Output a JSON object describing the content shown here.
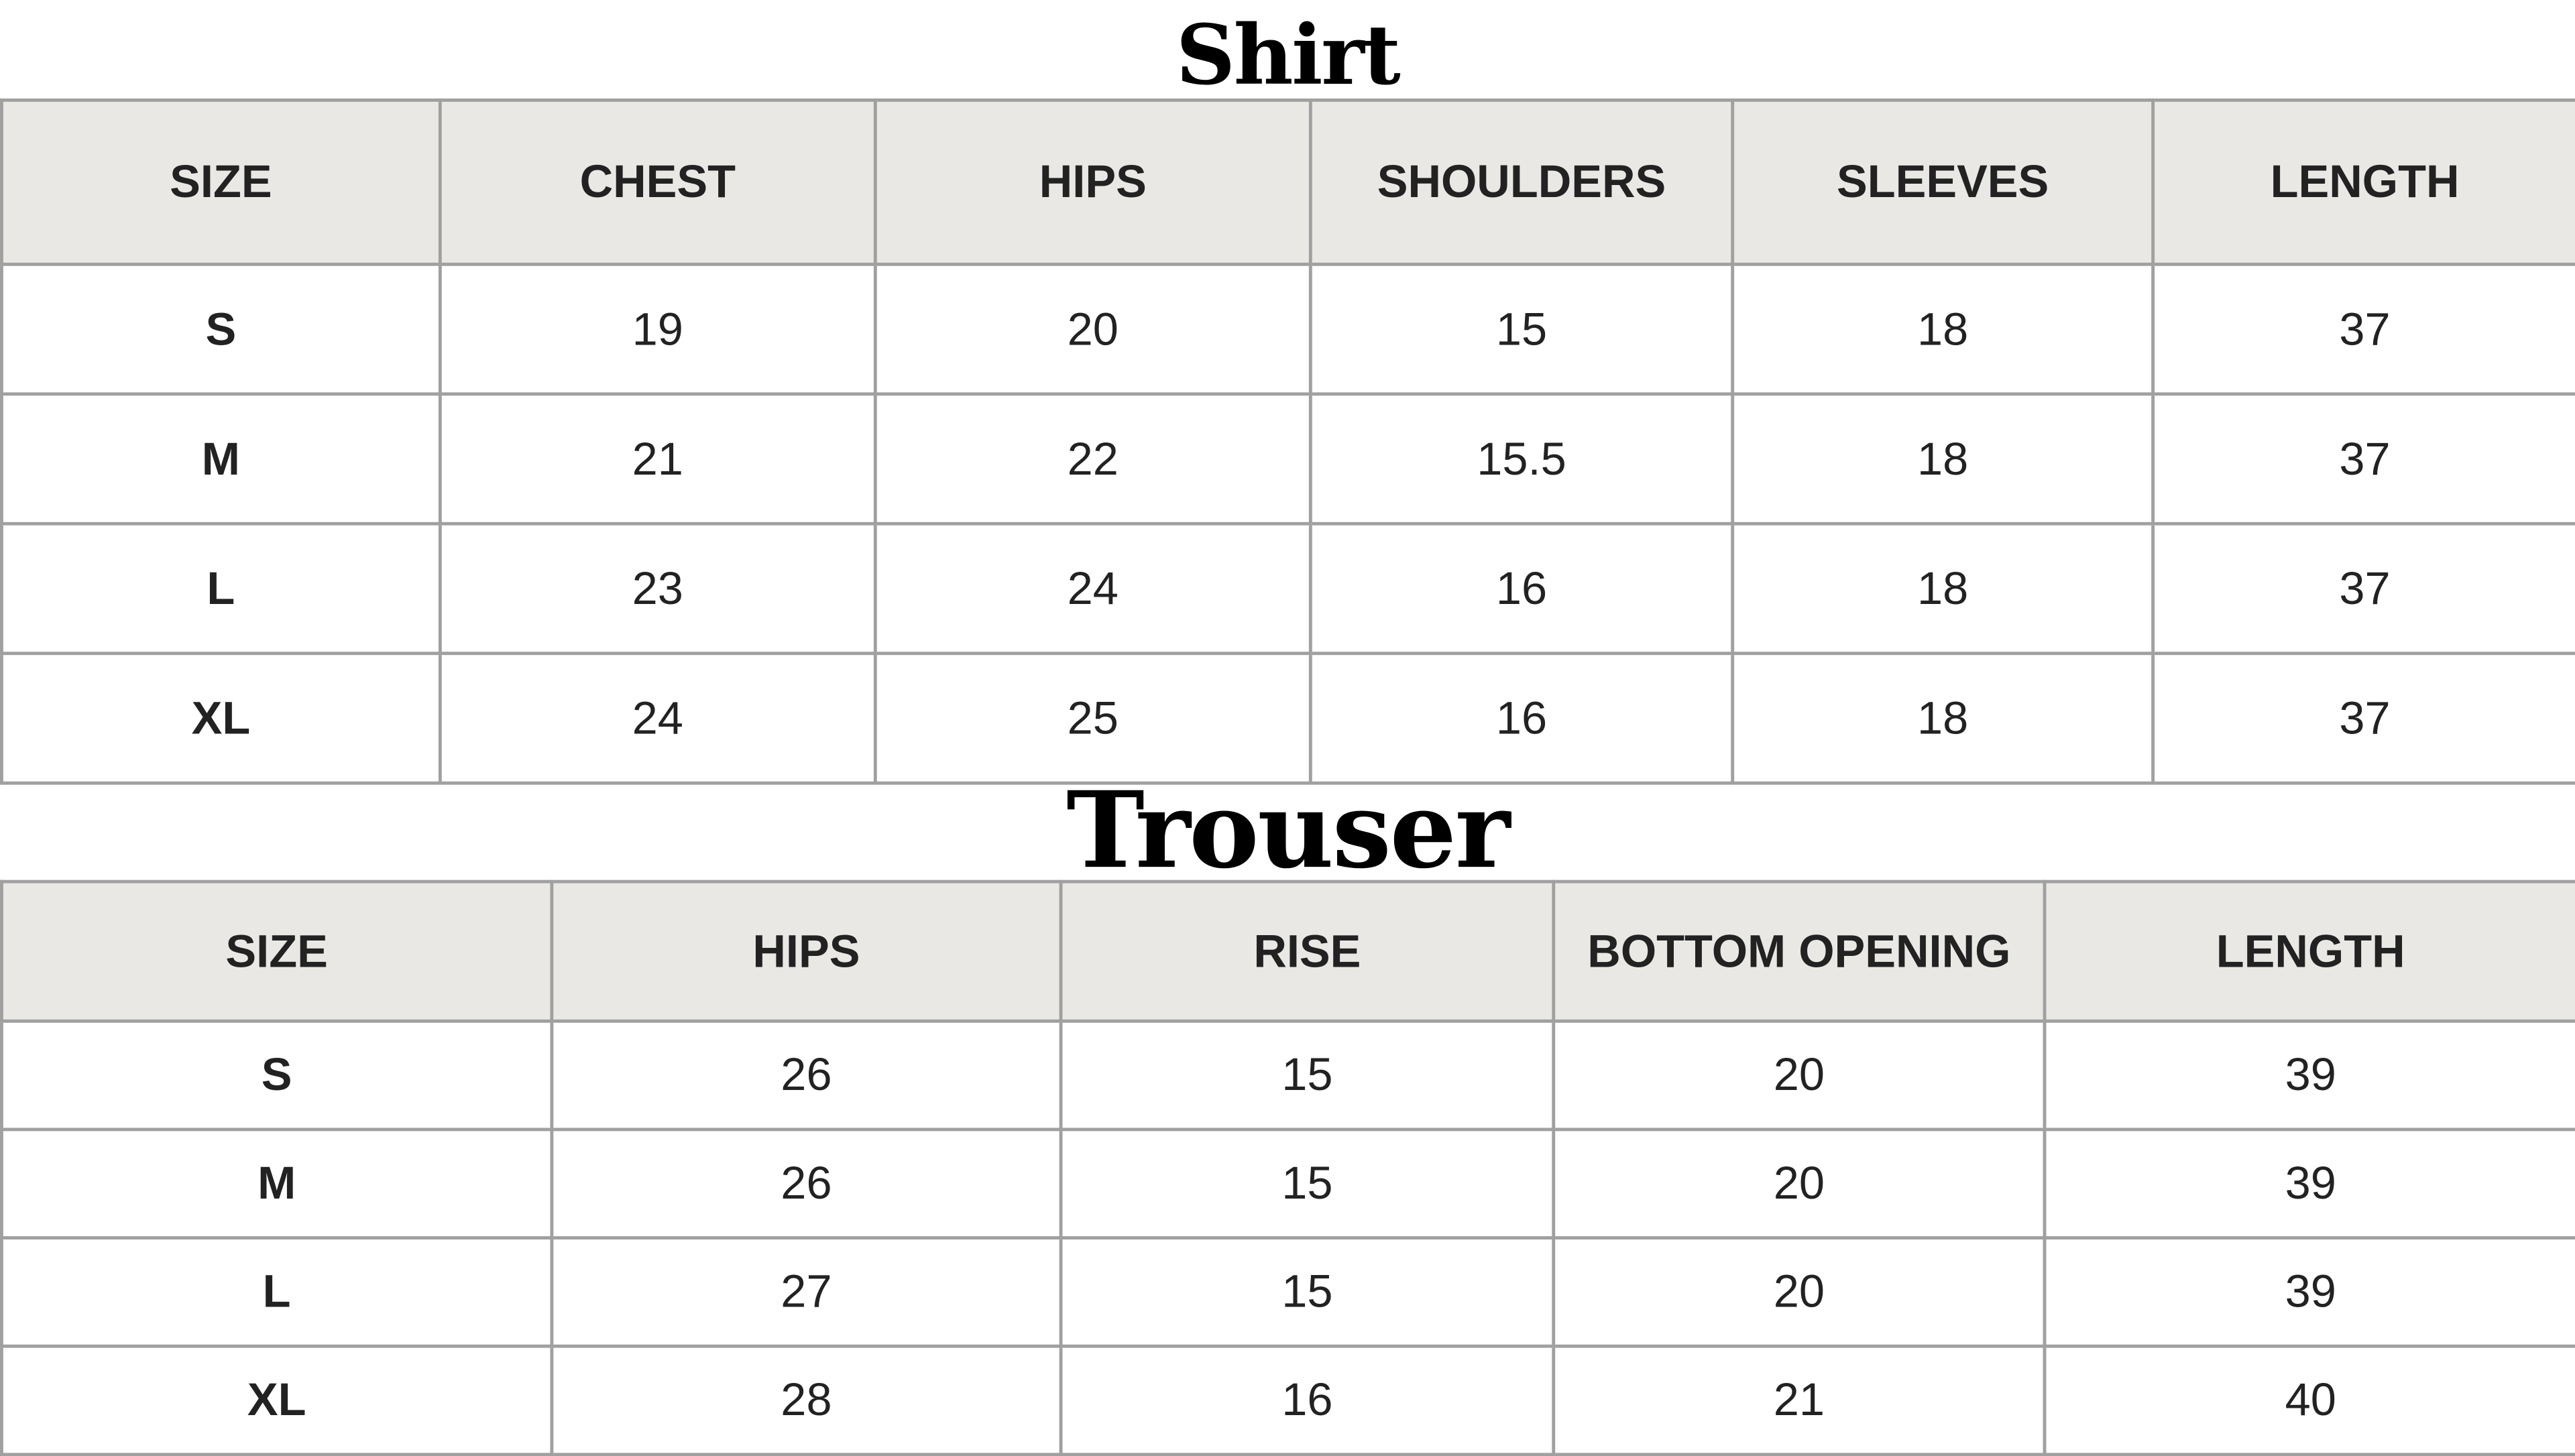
{
  "shirt": {
    "title": "Shirt",
    "headers": [
      "SIZE",
      "CHEST",
      "HIPS",
      "SHOULDERS",
      "SLEEVES",
      "LENGTH"
    ],
    "rows": [
      [
        "S",
        "19",
        "20",
        "15",
        "18",
        "37"
      ],
      [
        "M",
        "21",
        "22",
        "15.5",
        "18",
        "37"
      ],
      [
        "L",
        "23",
        "24",
        "16",
        "18",
        "37"
      ],
      [
        "XL",
        "24",
        "25",
        "16",
        "18",
        "37"
      ]
    ]
  },
  "trouser": {
    "title": "Trouser",
    "headers": [
      "SIZE",
      "HIPS",
      "RISE",
      "BOTTOM OPENING",
      "LENGTH"
    ],
    "rows": [
      [
        "S",
        "26",
        "15",
        "20",
        "39"
      ],
      [
        "M",
        "26",
        "15",
        "20",
        "39"
      ],
      [
        "L",
        "27",
        "15",
        "20",
        "39"
      ],
      [
        "XL",
        "28",
        "16",
        "21",
        "40"
      ]
    ]
  },
  "colors": {
    "header_bg": "#e9e8e4",
    "border": "#a0a0a0",
    "text": "#222222"
  }
}
